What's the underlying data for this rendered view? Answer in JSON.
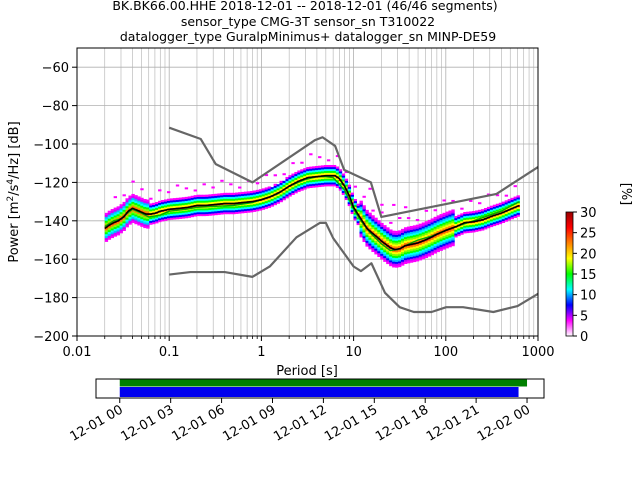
{
  "title_lines": [
    "BK.BK66.00.HHE   2018-12-01 -- 2018-12-01  (46/46 segments)",
    "sensor_type CMG-3T sensor_sn T310022",
    "datalogger_type GuralpMinimus+ datalogger_sn MINP-DE59"
  ],
  "chart_data": {
    "type": "heatmap",
    "description_kind": "probabilistic power spectral density",
    "xlabel": "Period [s]",
    "ylabel_parts": [
      "Power [m",
      "2",
      "/s",
      "4",
      "/Hz] [dB]"
    ],
    "x_scale": "log",
    "xlim": [
      0.01,
      1000
    ],
    "ylim": [
      -200,
      -50
    ],
    "x_ticks": [
      {
        "value": 0.01,
        "label": "0.01"
      },
      {
        "value": 0.1,
        "label": "0.1"
      },
      {
        "value": 1,
        "label": "1"
      },
      {
        "value": 10,
        "label": "10"
      },
      {
        "value": 100,
        "label": "100"
      },
      {
        "value": 1000,
        "label": "1000"
      }
    ],
    "y_ticks": [
      -60,
      -80,
      -100,
      -120,
      -140,
      -160,
      -180,
      -200
    ],
    "grid": true,
    "colorbar": {
      "label": "[%]",
      "range": [
        0,
        30
      ],
      "ticks": [
        0,
        5,
        10,
        15,
        20,
        25,
        30
      ],
      "colors": [
        "#ffffff",
        "#ff00ff",
        "#0000ff",
        "#00ffff",
        "#00ff00",
        "#ffff00",
        "#ff8000",
        "#ff0000",
        "#990000"
      ]
    },
    "noise_model_high": {
      "name": "NHNM",
      "color": "#666666",
      "x": [
        0.1,
        0.22,
        0.32,
        0.8,
        3.8,
        4.6,
        6.3,
        7.9,
        15.4,
        20,
        354.8,
        1000
      ],
      "y": [
        -91.5,
        -97.4,
        -110.5,
        -120,
        -98,
        -96.5,
        -101,
        -113.5,
        -120,
        -138,
        -126,
        -112
      ]
    },
    "noise_model_low": {
      "name": "NLNM",
      "color": "#666666",
      "x": [
        0.1,
        0.17,
        0.4,
        0.8,
        1.24,
        2.4,
        4.3,
        5.0,
        6.0,
        10.0,
        12.0,
        15.6,
        21.9,
        31.6,
        45,
        70,
        101,
        154,
        328,
        600,
        1000
      ],
      "y": [
        -168,
        -166.7,
        -166.7,
        -169.2,
        -163.7,
        -148.6,
        -141.1,
        -141.1,
        -149,
        -163.8,
        -166.2,
        -162.1,
        -177.5,
        -185,
        -187.5,
        -187.5,
        -185,
        -185,
        -187.5,
        -184.4,
        -178
      ]
    },
    "mean_curve": {
      "color": "#000000",
      "x": [
        0.02,
        0.022,
        0.025,
        0.028,
        0.032,
        0.036,
        0.04,
        0.045,
        0.05,
        0.056,
        0.063,
        0.071,
        0.08,
        0.09,
        0.1,
        0.13,
        0.16,
        0.2,
        0.25,
        0.32,
        0.4,
        0.5,
        0.63,
        0.8,
        1.0,
        1.25,
        1.6,
        2.0,
        2.5,
        3.2,
        4.0,
        5.0,
        6.3,
        7.0,
        8.0,
        9.0,
        10.0,
        12.0,
        14.0,
        16.0,
        18.0,
        20.0,
        22.0,
        25.0,
        28.0,
        32.0,
        36.0,
        40.0,
        45.0,
        50.0,
        60.0,
        70.0,
        80.0,
        100.0,
        130.0,
        160.0,
        200.0,
        250.0,
        320.0,
        400.0,
        500.0,
        630.0
      ],
      "y": [
        -144,
        -142.5,
        -141,
        -140,
        -138,
        -135,
        -133.5,
        -134.5,
        -135.5,
        -136.5,
        -136.5,
        -136,
        -135,
        -134.5,
        -134,
        -133.5,
        -133,
        -132,
        -132,
        -131.5,
        -131,
        -131,
        -130.5,
        -130,
        -129,
        -127.5,
        -125,
        -122,
        -119.5,
        -117.5,
        -117,
        -116.5,
        -116.5,
        -118,
        -122,
        -127,
        -133,
        -139,
        -144,
        -146.5,
        -148.5,
        -150.5,
        -152,
        -154,
        -155,
        -154.5,
        -153,
        -152.5,
        -152,
        -151.5,
        -150,
        -148.5,
        -147,
        -145,
        -143,
        -141,
        -140.5,
        -139.5,
        -137.5,
        -136,
        -134,
        -132
      ]
    },
    "mode_curve": {
      "color": "#00aa00",
      "x": [
        0.02,
        0.025,
        0.03,
        0.035,
        0.04,
        0.05,
        0.06,
        0.08,
        0.1,
        0.15,
        0.2,
        0.3,
        0.5,
        0.8,
        1.0,
        1.5,
        2.0,
        3.0,
        4.0,
        5.0,
        6.0,
        8.0,
        10.0,
        12.0,
        15.0,
        20.0,
        25.0,
        30.0,
        40.0,
        50.0,
        70.0,
        100.0,
        150.0,
        200.0,
        300.0,
        400.0,
        500.0,
        630.0
      ],
      "y": [
        -143,
        -140,
        -139,
        -136,
        -134,
        -136,
        -138,
        -137,
        -135,
        -134,
        -133,
        -132.5,
        -132,
        -130.5,
        -129,
        -126,
        -122,
        -118.5,
        -117,
        -117,
        -117.5,
        -124,
        -134,
        -140,
        -146,
        -152,
        -155.5,
        -155,
        -152,
        -150,
        -148,
        -145,
        -142,
        -140,
        -137,
        -135,
        -132.5,
        -130
      ]
    },
    "data_time_axis": {
      "tick_labels": [
        "12-01 00",
        "12-01 03",
        "12-01 06",
        "12-01 09",
        "12-01 12",
        "12-01 15",
        "12-01 18",
        "12-01 21",
        "12-02 00"
      ],
      "start_hour": -1.4,
      "end_hour": 25.0,
      "available_data": {
        "color": "#008000",
        "start_hour": 0.0,
        "end_hour": 24.0
      },
      "used_for_psd": {
        "color": "#0000ee",
        "start_hour": 0.0,
        "end_hour": 23.5
      }
    }
  }
}
